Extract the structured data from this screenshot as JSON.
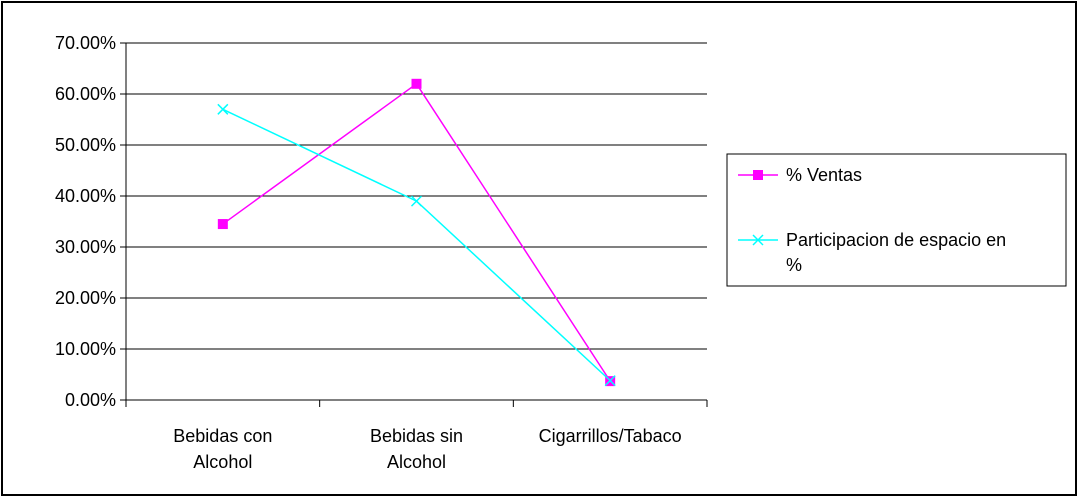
{
  "chart_data": {
    "type": "line",
    "categories": [
      [
        "Bebidas con",
        "Alcohol"
      ],
      [
        "Bebidas sin",
        "Alcohol"
      ],
      [
        "Cigarrillos/Tabaco"
      ]
    ],
    "series": [
      {
        "name": "% Ventas",
        "values": [
          0.345,
          0.62,
          0.037
        ],
        "color": "#ff00ff",
        "marker": "square"
      },
      {
        "name": [
          "Participacion de espacio en",
          "%"
        ],
        "values": [
          0.57,
          0.39,
          0.038
        ],
        "color": "#00ffff",
        "marker": "x"
      }
    ],
    "ylim": [
      0,
      0.7
    ],
    "yticks": [
      0,
      0.1,
      0.2,
      0.3,
      0.4,
      0.5,
      0.6,
      0.7
    ],
    "ytick_labels": [
      "0.00%",
      "10.00%",
      "20.00%",
      "30.00%",
      "40.00%",
      "50.00%",
      "60.00%",
      "70.00%"
    ],
    "grid": true,
    "legend": "right",
    "title": "",
    "xlabel": "",
    "ylabel": ""
  }
}
